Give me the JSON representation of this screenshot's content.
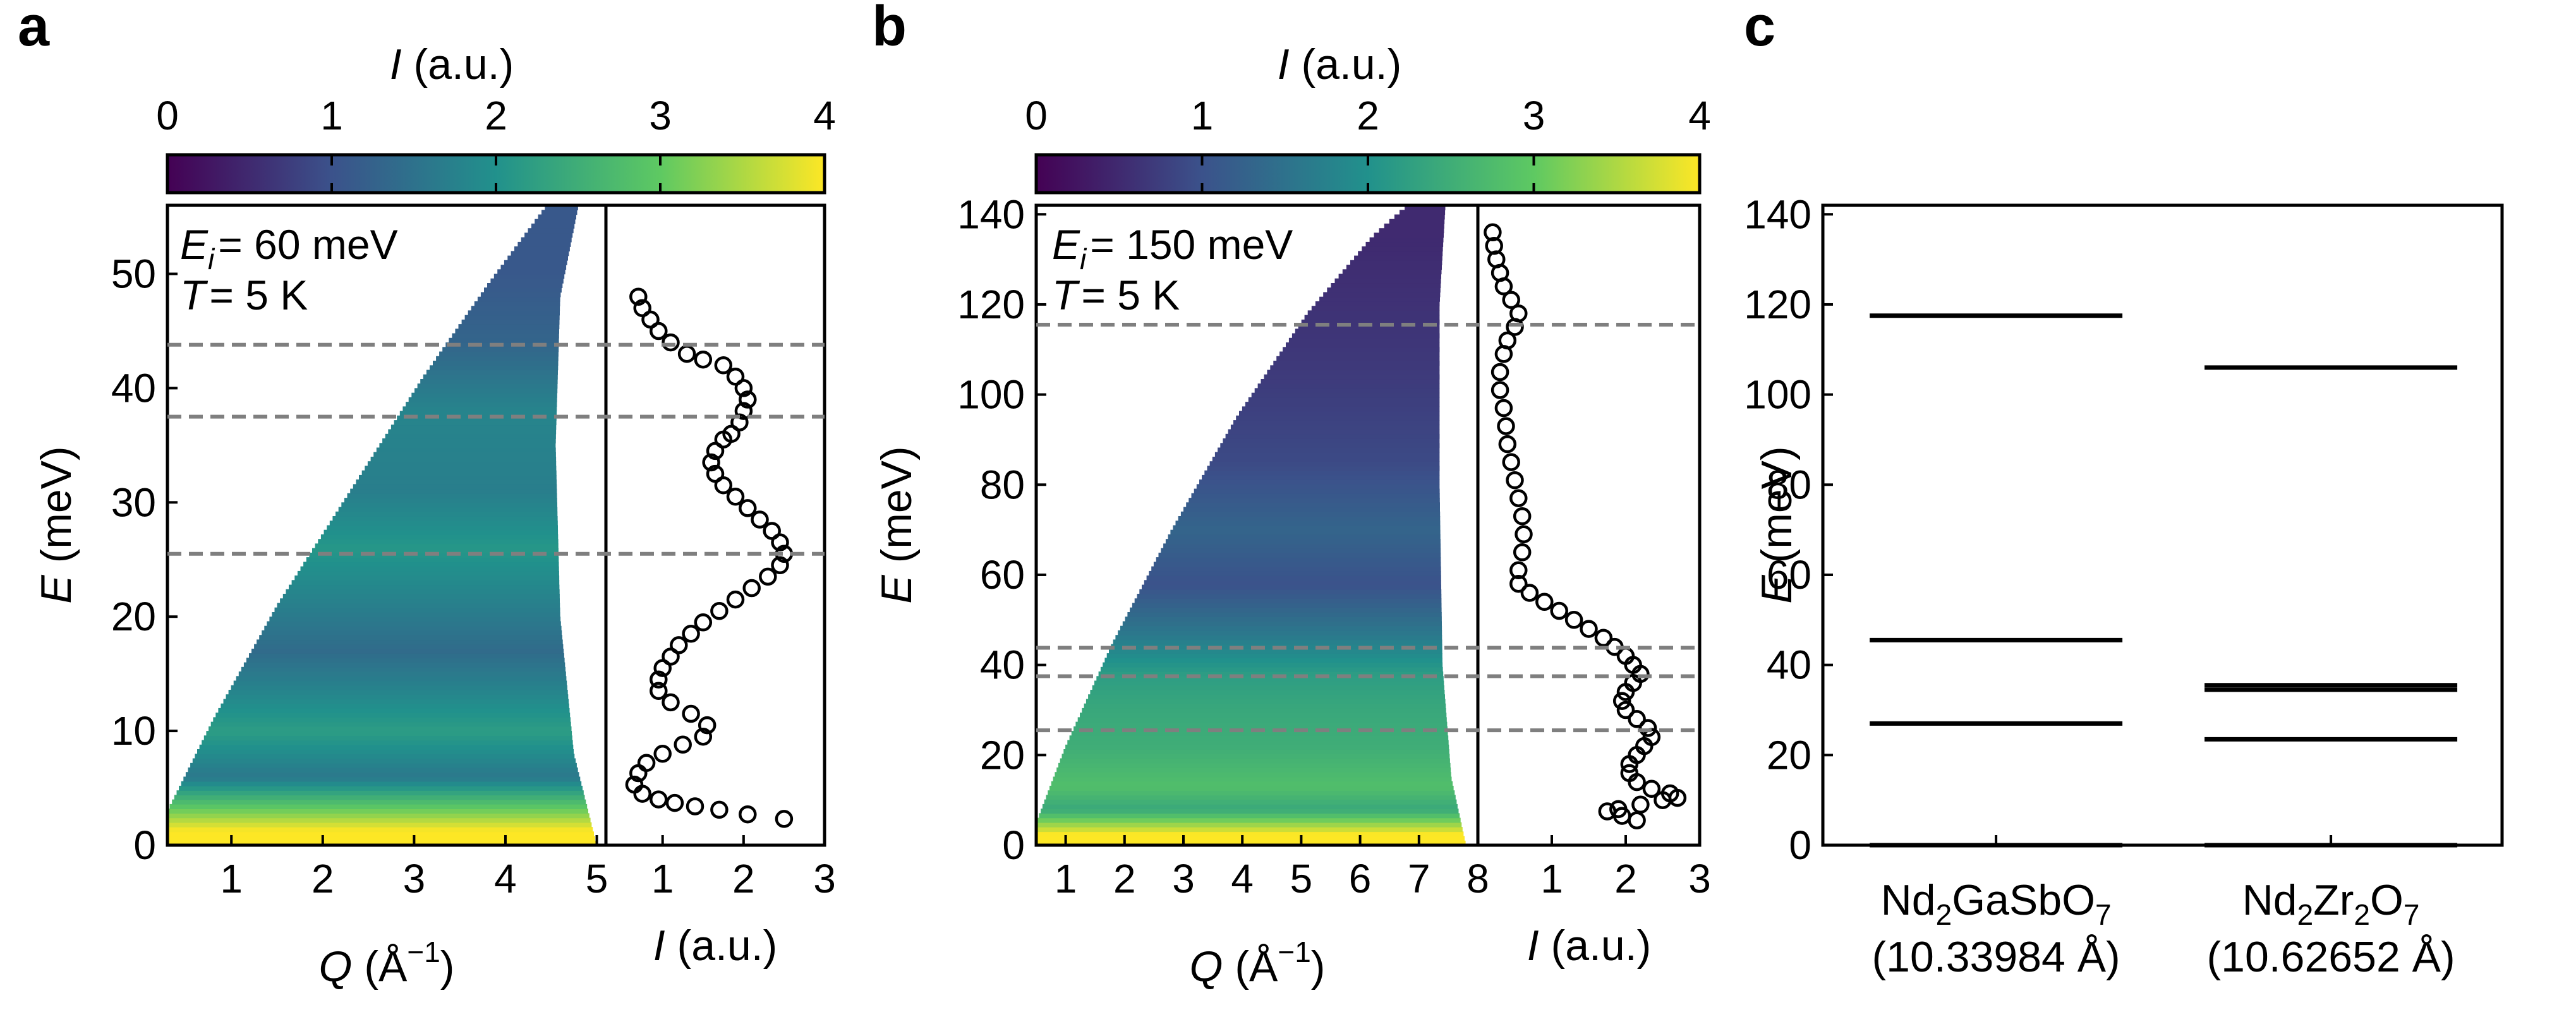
{
  "chart_data": [
    {
      "panel": "a",
      "type": "heatmap",
      "colorbar": {
        "label_var": "I",
        "label_unit": "(a.u.)",
        "range": [
          0,
          4
        ],
        "ticks": [
          "0",
          "1",
          "2",
          "3",
          "4"
        ],
        "colors": [
          "#440154",
          "#3b528b",
          "#21918c",
          "#5ec962",
          "#fde725"
        ]
      },
      "annotation": {
        "ei_var": "E",
        "ei_sub": "i",
        "ei_value": "= 60 meV",
        "t_var": "T",
        "t_value": "= 5 K"
      },
      "xlabel_var": "Q",
      "xlabel_unit": "(Å",
      "xlabel_exp": "−1",
      "xlabel_close": ")",
      "ylabel_var": "E",
      "ylabel_unit": "(meV)",
      "xlim": [
        0.3,
        5.1
      ],
      "ylim": [
        0,
        56
      ],
      "xticks": [
        "1",
        "2",
        "3",
        "4",
        "5"
      ],
      "yticks": [
        "0",
        "10",
        "20",
        "30",
        "40",
        "50"
      ],
      "kinematic_edge": [
        [
          0.3,
          3
        ],
        [
          0.8,
          11
        ],
        [
          1.5,
          21
        ],
        [
          2.3,
          31
        ],
        [
          3.1,
          41
        ],
        [
          3.8,
          49
        ],
        [
          4.45,
          56
        ]
      ],
      "right_edge": [
        [
          5.0,
          0
        ],
        [
          4.75,
          8
        ],
        [
          4.6,
          20
        ],
        [
          4.55,
          35
        ],
        [
          4.6,
          48
        ],
        [
          4.8,
          56
        ]
      ],
      "bands": [
        {
          "E": 1.3,
          "level": 4.0
        },
        {
          "E": 6,
          "level": 1.6
        },
        {
          "E": 10,
          "level": 2.2
        },
        {
          "E": 17,
          "level": 1.4
        },
        {
          "E": 26,
          "level": 2.1
        },
        {
          "E": 31,
          "level": 1.7
        },
        {
          "E": 38,
          "level": 1.8
        },
        {
          "E": 44,
          "level": 1.3
        },
        {
          "E": 50,
          "level": 1.1
        }
      ],
      "dashed_E": [
        25.5,
        37.5,
        43.8
      ],
      "cut": {
        "xlabel_var": "I",
        "xlabel_unit": "(a.u.)",
        "xlim": [
          0.3,
          3
        ],
        "xticks": [
          "1",
          "2",
          "3"
        ],
        "points": [
          [
            0.7,
            48
          ],
          [
            0.75,
            47
          ],
          [
            0.85,
            46
          ],
          [
            0.95,
            45
          ],
          [
            1.1,
            44
          ],
          [
            1.3,
            43
          ],
          [
            1.5,
            42.5
          ],
          [
            1.75,
            42
          ],
          [
            1.9,
            41
          ],
          [
            2.0,
            40
          ],
          [
            2.05,
            39
          ],
          [
            2.0,
            38
          ],
          [
            1.95,
            37
          ],
          [
            1.85,
            36
          ],
          [
            1.75,
            35.5
          ],
          [
            1.65,
            34.5
          ],
          [
            1.6,
            33.5
          ],
          [
            1.65,
            32.5
          ],
          [
            1.75,
            31.5
          ],
          [
            1.9,
            30.5
          ],
          [
            2.05,
            29.5
          ],
          [
            2.2,
            28.5
          ],
          [
            2.35,
            27.5
          ],
          [
            2.45,
            26.5
          ],
          [
            2.5,
            25.5
          ],
          [
            2.45,
            24.5
          ],
          [
            2.3,
            23.5
          ],
          [
            2.1,
            22.5
          ],
          [
            1.9,
            21.5
          ],
          [
            1.7,
            20.5
          ],
          [
            1.5,
            19.5
          ],
          [
            1.35,
            18.5
          ],
          [
            1.2,
            17.5
          ],
          [
            1.1,
            16.5
          ],
          [
            1.0,
            15.5
          ],
          [
            0.95,
            14.5
          ],
          [
            0.95,
            13.5
          ],
          [
            1.1,
            12.5
          ],
          [
            1.35,
            11.5
          ],
          [
            1.55,
            10.5
          ],
          [
            1.5,
            9.5
          ],
          [
            1.25,
            8.8
          ],
          [
            1.0,
            8.0
          ],
          [
            0.8,
            7.2
          ],
          [
            0.7,
            6.3
          ],
          [
            0.65,
            5.3
          ],
          [
            0.75,
            4.5
          ],
          [
            0.95,
            4.0
          ],
          [
            1.15,
            3.7
          ],
          [
            1.4,
            3.4
          ],
          [
            1.7,
            3.1
          ],
          [
            2.05,
            2.7
          ],
          [
            2.5,
            2.3
          ]
        ]
      }
    },
    {
      "panel": "b",
      "type": "heatmap",
      "colorbar": {
        "label_var": "I",
        "label_unit": "(a.u.)",
        "range": [
          0,
          4
        ],
        "ticks": [
          "0",
          "1",
          "2",
          "3",
          "4"
        ],
        "colors": [
          "#440154",
          "#3b528b",
          "#21918c",
          "#5ec962",
          "#fde725"
        ]
      },
      "annotation": {
        "ei_var": "E",
        "ei_sub": "i",
        "ei_value": "= 150 meV",
        "t_var": "T",
        "t_value": "= 5 K"
      },
      "xlabel_var": "Q",
      "xlabel_unit": "(Å",
      "xlabel_exp": "−1",
      "xlabel_close": ")",
      "ylabel_var": "E",
      "ylabel_unit": "(meV)",
      "xlim": [
        0.5,
        8.0
      ],
      "ylim": [
        0,
        142
      ],
      "xticks": [
        "1",
        "2",
        "3",
        "4",
        "5",
        "6",
        "7",
        "8"
      ],
      "yticks": [
        "0",
        "20",
        "40",
        "60",
        "80",
        "100",
        "120",
        "140"
      ],
      "kinematic_edge": [
        [
          0.5,
          5
        ],
        [
          1.0,
          22
        ],
        [
          1.8,
          45
        ],
        [
          2.8,
          70
        ],
        [
          3.9,
          95
        ],
        [
          5.1,
          118
        ],
        [
          6.2,
          135
        ],
        [
          6.8,
          142
        ]
      ],
      "right_edge": [
        [
          7.8,
          0
        ],
        [
          7.55,
          15
        ],
        [
          7.4,
          40
        ],
        [
          7.35,
          80
        ],
        [
          7.35,
          120
        ],
        [
          7.45,
          142
        ]
      ],
      "bands": [
        {
          "E": 2.5,
          "level": 4.0
        },
        {
          "E": 8,
          "level": 2.4
        },
        {
          "E": 13,
          "level": 2.8
        },
        {
          "E": 22,
          "level": 2.5
        },
        {
          "E": 30,
          "level": 2.4
        },
        {
          "E": 38,
          "level": 2.2
        },
        {
          "E": 47,
          "level": 1.6
        },
        {
          "E": 58,
          "level": 1.0
        },
        {
          "E": 70,
          "level": 1.3
        },
        {
          "E": 85,
          "level": 0.9
        },
        {
          "E": 105,
          "level": 0.7
        },
        {
          "E": 120,
          "level": 0.6
        },
        {
          "E": 135,
          "level": 0.5
        }
      ],
      "dashed_E": [
        25.5,
        37.5,
        43.8,
        115.5
      ],
      "cut": {
        "xlabel_var": "I",
        "xlabel_unit": "(a.u.)",
        "xlim": [
          0,
          3
        ],
        "xticks": [
          "1",
          "2",
          "3"
        ],
        "points": [
          [
            0.2,
            136
          ],
          [
            0.22,
            133
          ],
          [
            0.25,
            130
          ],
          [
            0.3,
            127
          ],
          [
            0.35,
            124
          ],
          [
            0.45,
            121
          ],
          [
            0.55,
            118
          ],
          [
            0.5,
            115
          ],
          [
            0.4,
            112
          ],
          [
            0.35,
            109
          ],
          [
            0.3,
            105
          ],
          [
            0.3,
            101
          ],
          [
            0.35,
            97
          ],
          [
            0.38,
            93
          ],
          [
            0.4,
            89
          ],
          [
            0.45,
            85
          ],
          [
            0.5,
            81
          ],
          [
            0.55,
            77
          ],
          [
            0.6,
            73
          ],
          [
            0.62,
            69
          ],
          [
            0.6,
            65
          ],
          [
            0.55,
            61
          ],
          [
            0.55,
            58
          ],
          [
            0.7,
            56
          ],
          [
            0.9,
            54
          ],
          [
            1.1,
            52
          ],
          [
            1.3,
            50
          ],
          [
            1.5,
            48
          ],
          [
            1.7,
            46
          ],
          [
            1.85,
            44
          ],
          [
            2.0,
            42
          ],
          [
            2.1,
            40
          ],
          [
            2.2,
            38
          ],
          [
            2.1,
            36
          ],
          [
            2.0,
            34
          ],
          [
            1.95,
            32
          ],
          [
            2.0,
            30
          ],
          [
            2.15,
            28
          ],
          [
            2.3,
            26
          ],
          [
            2.35,
            24
          ],
          [
            2.25,
            22
          ],
          [
            2.15,
            20
          ],
          [
            2.05,
            18
          ],
          [
            2.05,
            16
          ],
          [
            2.15,
            14
          ],
          [
            2.35,
            12.5
          ],
          [
            2.6,
            11.5
          ],
          [
            2.7,
            10.5
          ],
          [
            2.5,
            10
          ],
          [
            2.2,
            9
          ],
          [
            1.9,
            8
          ],
          [
            1.75,
            7.5
          ],
          [
            1.95,
            6.5
          ],
          [
            2.15,
            5.5
          ]
        ]
      }
    },
    {
      "panel": "c",
      "type": "level-diagram",
      "ylabel_var": "E",
      "ylabel_unit": "(meV)",
      "ylim": [
        0,
        142
      ],
      "yticks": [
        "0",
        "20",
        "40",
        "60",
        "80",
        "100",
        "120",
        "140"
      ],
      "categories": [
        {
          "formula": [
            [
              "Nd",
              "n"
            ],
            [
              "2",
              "s"
            ],
            [
              "GaSbO",
              "n"
            ],
            [
              "7",
              "s"
            ]
          ],
          "lattice": "(10.33984 Å)",
          "levels": [
            0,
            27,
            45.5,
            117.5
          ]
        },
        {
          "formula": [
            [
              "Nd",
              "n"
            ],
            [
              "2",
              "s"
            ],
            [
              "Zr",
              "n"
            ],
            [
              "2",
              "s"
            ],
            [
              "O",
              "n"
            ],
            [
              "7",
              "s"
            ]
          ],
          "lattice": "(10.62652 Å)",
          "levels": [
            0,
            23.5,
            34.5,
            35.5,
            106
          ]
        }
      ]
    }
  ]
}
